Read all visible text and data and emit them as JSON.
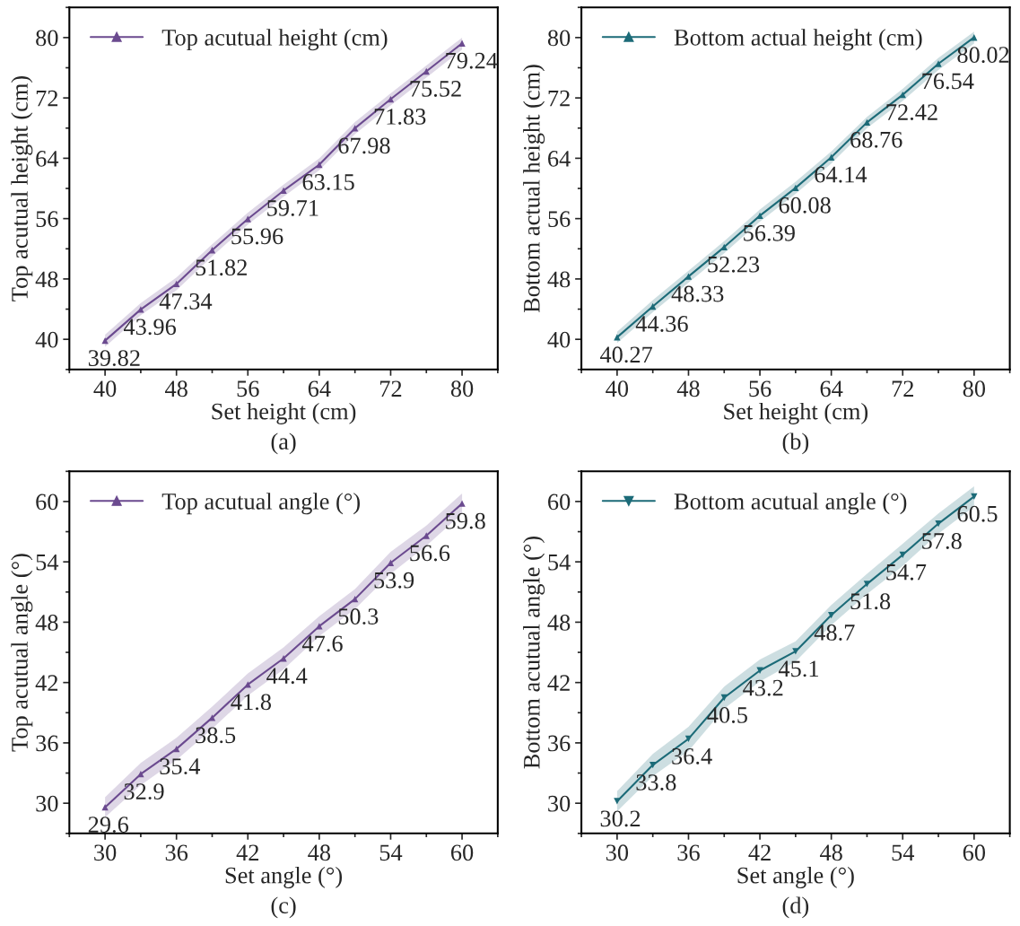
{
  "chart_data": [
    {
      "type": "line",
      "xlabel": "Set height (cm)",
      "ylabel": "Top acutual height (cm)",
      "x": [
        40,
        44,
        48,
        52,
        56,
        60,
        64,
        68,
        72,
        76,
        80
      ],
      "xlim": [
        36,
        84
      ],
      "ylim": [
        36,
        84
      ],
      "xticks": [
        40,
        48,
        56,
        64,
        72,
        80
      ],
      "yticks": [
        40,
        48,
        56,
        64,
        72,
        80
      ],
      "marker": "triangle",
      "legend": "top left",
      "data_labels": true,
      "grid": false,
      "annotations": [
        "(a)"
      ],
      "series": [
        {
          "name": "Top acutual height (cm)",
          "color": "#6b4a8f",
          "values": [
            39.82,
            43.96,
            47.34,
            51.82,
            55.96,
            59.71,
            63.15,
            67.98,
            71.83,
            75.52,
            79.24
          ],
          "lower": [
            39.0,
            43.2,
            46.5,
            51.0,
            55.2,
            58.9,
            62.4,
            67.2,
            71.0,
            74.7,
            78.4
          ],
          "upper": [
            40.6,
            44.8,
            48.2,
            52.6,
            56.8,
            60.5,
            64.0,
            68.8,
            72.6,
            76.3,
            80.0
          ]
        }
      ]
    },
    {
      "type": "line",
      "xlabel": "Set height (cm)",
      "ylabel": "Bottom actual height (cm)",
      "x": [
        40,
        44,
        48,
        52,
        56,
        60,
        64,
        68,
        72,
        76,
        80
      ],
      "xlim": [
        36,
        84
      ],
      "ylim": [
        36,
        84
      ],
      "xticks": [
        40,
        48,
        56,
        64,
        72,
        80
      ],
      "yticks": [
        40,
        48,
        56,
        64,
        72,
        80
      ],
      "marker": "triangle",
      "legend": "top left",
      "data_labels": true,
      "grid": false,
      "annotations": [
        "(b)"
      ],
      "series": [
        {
          "name": "Bottom actual height (cm)",
          "color": "#1c6b78",
          "values": [
            40.27,
            44.36,
            48.33,
            52.23,
            56.39,
            60.08,
            64.14,
            68.76,
            72.42,
            76.54,
            80.02
          ],
          "lower": [
            39.5,
            43.6,
            47.5,
            51.4,
            55.6,
            59.3,
            63.3,
            68.0,
            71.6,
            75.7,
            79.2
          ],
          "upper": [
            41.0,
            45.2,
            49.1,
            53.0,
            57.2,
            60.9,
            64.9,
            69.5,
            73.2,
            77.3,
            80.8
          ]
        }
      ]
    },
    {
      "type": "line",
      "xlabel": "Set angle (°)",
      "ylabel": "Top acutual angle (°)",
      "x": [
        30,
        33,
        36,
        39,
        42,
        45,
        48,
        51,
        54,
        57,
        60
      ],
      "xlim": [
        27,
        63
      ],
      "ylim": [
        27,
        63
      ],
      "xticks": [
        30,
        36,
        42,
        48,
        54,
        60
      ],
      "yticks": [
        30,
        36,
        42,
        48,
        54,
        60
      ],
      "marker": "triangle",
      "legend": "top left",
      "data_labels": true,
      "grid": false,
      "annotations": [
        "(c)"
      ],
      "series": [
        {
          "name": "Top acutual angle (°)",
          "color": "#6b4a8f",
          "values": [
            29.6,
            32.9,
            35.4,
            38.5,
            41.8,
            44.4,
            47.6,
            50.3,
            53.9,
            56.6,
            59.8
          ],
          "lower": [
            28.6,
            31.8,
            34.3,
            37.4,
            40.7,
            43.3,
            46.6,
            49.3,
            52.8,
            55.6,
            58.8
          ],
          "upper": [
            30.6,
            34.0,
            36.5,
            39.6,
            42.9,
            45.5,
            48.6,
            51.3,
            55.0,
            57.6,
            60.8
          ]
        }
      ]
    },
    {
      "type": "line",
      "xlabel": "Set angle (°)",
      "ylabel": "Bottom acutual angle (°)",
      "x": [
        30,
        33,
        36,
        39,
        42,
        45,
        48,
        51,
        54,
        57,
        60
      ],
      "xlim": [
        27,
        63
      ],
      "ylim": [
        27,
        63
      ],
      "xticks": [
        30,
        36,
        42,
        48,
        54,
        60
      ],
      "yticks": [
        30,
        36,
        42,
        48,
        54,
        60
      ],
      "marker": "triangle_down",
      "legend": "top left",
      "data_labels": true,
      "grid": false,
      "annotations": [
        "(d)"
      ],
      "series": [
        {
          "name": "Bottom acutual angle (°)",
          "color": "#1c6b78",
          "values": [
            30.2,
            33.8,
            36.4,
            40.5,
            43.2,
            45.1,
            48.7,
            51.8,
            54.7,
            57.8,
            60.5
          ],
          "lower": [
            29.2,
            32.7,
            35.2,
            39.4,
            42.1,
            44.1,
            47.7,
            50.8,
            53.6,
            56.8,
            59.5
          ],
          "upper": [
            31.2,
            34.9,
            37.6,
            41.6,
            44.3,
            46.1,
            49.7,
            52.8,
            55.8,
            58.8,
            61.5
          ]
        }
      ]
    }
  ]
}
